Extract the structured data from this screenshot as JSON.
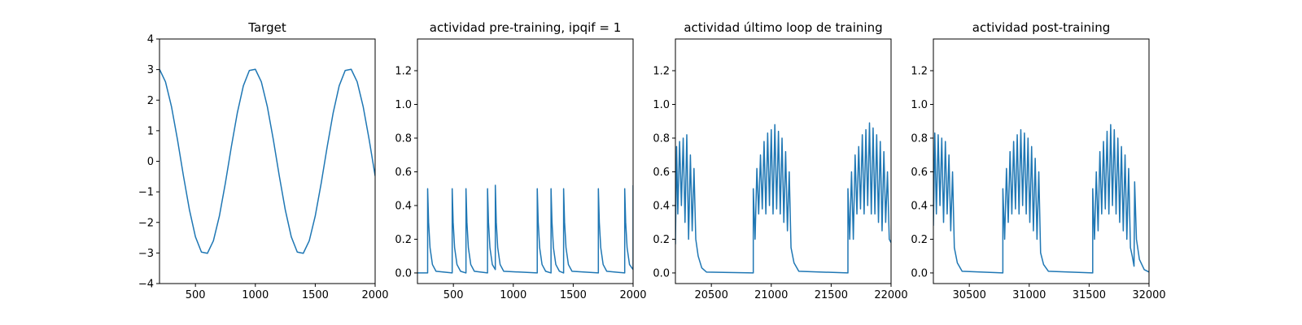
{
  "chart_data": [
    {
      "type": "line",
      "title": "Target",
      "color": "#1f77b4",
      "x": [
        200,
        250,
        300,
        350,
        400,
        450,
        500,
        550,
        600,
        650,
        700,
        750,
        800,
        850,
        900,
        950,
        1000,
        1050,
        1100,
        1150,
        1200,
        1250,
        1300,
        1350,
        1400,
        1450,
        1500,
        1550,
        1600,
        1650,
        1700,
        1750,
        1800,
        1850,
        1900,
        1950,
        2000
      ],
      "values": [
        3.01,
        2.6,
        1.79,
        0.71,
        -0.48,
        -1.59,
        -2.47,
        -2.97,
        -3.01,
        -2.6,
        -1.79,
        -0.71,
        0.48,
        1.59,
        2.47,
        2.97,
        3.01,
        2.6,
        1.79,
        0.71,
        -0.48,
        -1.59,
        -2.47,
        -2.97,
        -3.01,
        -2.6,
        -1.79,
        -0.71,
        0.48,
        1.59,
        2.47,
        2.97,
        3.01,
        2.6,
        1.79,
        0.71,
        -0.48
      ],
      "xlim": [
        200,
        2000
      ],
      "xticks": [
        500,
        1000,
        1500,
        2000
      ],
      "ylim": [
        -4,
        4
      ],
      "yticks": [
        {
          "value": -4,
          "label": "−4"
        },
        {
          "value": -3,
          "label": "−3"
        },
        {
          "value": -2,
          "label": "−2"
        },
        {
          "value": -1,
          "label": "−1"
        },
        0,
        1,
        2,
        3,
        4
      ]
    },
    {
      "type": "line",
      "title": "actividad pre-training, ipqif = 1",
      "color": "#1f77b4",
      "x": [
        200,
        285,
        285,
        293,
        305,
        325,
        355,
        490,
        490,
        498,
        510,
        530,
        560,
        605,
        605,
        613,
        625,
        645,
        675,
        785,
        785,
        793,
        805,
        825,
        850,
        850,
        858,
        870,
        890,
        920,
        1200,
        1200,
        1208,
        1220,
        1240,
        1270,
        1315,
        1315,
        1323,
        1335,
        1355,
        1385,
        1420,
        1420,
        1428,
        1440,
        1460,
        1490,
        1710,
        1710,
        1718,
        1730,
        1750,
        1780,
        1930,
        1930,
        1938,
        1950,
        1970,
        2000,
        2000
      ],
      "values": [
        0,
        0,
        0.5,
        0.3,
        0.15,
        0.05,
        0.01,
        0,
        0.5,
        0.3,
        0.15,
        0.05,
        0.01,
        0,
        0.5,
        0.3,
        0.15,
        0.05,
        0.01,
        0,
        0.5,
        0.3,
        0.15,
        0.05,
        0.02,
        0.52,
        0.3,
        0.15,
        0.05,
        0.01,
        0,
        0.5,
        0.3,
        0.15,
        0.05,
        0.01,
        0,
        0.5,
        0.3,
        0.15,
        0.05,
        0.01,
        0,
        0.5,
        0.3,
        0.15,
        0.05,
        0.01,
        0,
        0.5,
        0.3,
        0.15,
        0.05,
        0.01,
        0,
        0.5,
        0.3,
        0.15,
        0.05,
        0.02,
        0.52
      ],
      "xlim": [
        200,
        2000
      ],
      "xticks": [
        500,
        1000,
        1500,
        2000
      ],
      "ylim": [
        -0.063,
        1.388
      ],
      "yticks": [
        {
          "value": 0,
          "label": "0.0"
        },
        0.2,
        0.4,
        0.6,
        0.8,
        {
          "value": 1,
          "label": "1.0"
        },
        1.2
      ]
    },
    {
      "type": "line",
      "title": "actividad último loop de training",
      "color": "#1f77b4",
      "x": [
        20200,
        20210,
        20220,
        20235,
        20250,
        20265,
        20280,
        20295,
        20310,
        20325,
        20340,
        20355,
        20370,
        20390,
        20420,
        20460,
        20850,
        20850,
        20865,
        20880,
        20895,
        20910,
        20925,
        20940,
        20955,
        20970,
        20985,
        21000,
        21015,
        21030,
        21045,
        21060,
        21075,
        21090,
        21105,
        21120,
        21135,
        21150,
        21165,
        21190,
        21230,
        21640,
        21640,
        21655,
        21670,
        21685,
        21700,
        21715,
        21730,
        21745,
        21760,
        21775,
        21790,
        21805,
        21820,
        21835,
        21850,
        21865,
        21880,
        21895,
        21910,
        21925,
        21940,
        21955,
        21970,
        21985,
        22000
      ],
      "values": [
        0.17,
        0.75,
        0.35,
        0.78,
        0.4,
        0.8,
        0.3,
        0.82,
        0.2,
        0.7,
        0.25,
        0.62,
        0.2,
        0.1,
        0.03,
        0.005,
        0,
        0.5,
        0.2,
        0.62,
        0.35,
        0.7,
        0.38,
        0.78,
        0.35,
        0.83,
        0.4,
        0.85,
        0.35,
        0.88,
        0.38,
        0.84,
        0.35,
        0.8,
        0.3,
        0.72,
        0.25,
        0.6,
        0.15,
        0.06,
        0.01,
        0,
        0.5,
        0.2,
        0.6,
        0.2,
        0.7,
        0.35,
        0.75,
        0.38,
        0.82,
        0.35,
        0.85,
        0.4,
        0.89,
        0.35,
        0.86,
        0.35,
        0.82,
        0.3,
        0.78,
        0.25,
        0.72,
        0.3,
        0.6,
        0.2,
        0.18
      ],
      "xlim": [
        20200,
        22000
      ],
      "xticks": [
        20500,
        21000,
        21500,
        22000
      ],
      "ylim": [
        -0.063,
        1.388
      ],
      "yticks": [
        {
          "value": 0,
          "label": "0.0"
        },
        0.2,
        0.4,
        0.6,
        0.8,
        {
          "value": 1,
          "label": "1.0"
        },
        1.2
      ]
    },
    {
      "type": "line",
      "title": "actividad post-training",
      "color": "#1f77b4",
      "x": [
        30200,
        30212,
        30225,
        30240,
        30255,
        30270,
        30285,
        30300,
        30315,
        30330,
        30345,
        30360,
        30375,
        30400,
        30440,
        30780,
        30780,
        30795,
        30810,
        30825,
        30840,
        30855,
        30870,
        30885,
        30900,
        30915,
        30930,
        30945,
        30960,
        30975,
        30990,
        31005,
        31020,
        31035,
        31050,
        31065,
        31080,
        31095,
        31120,
        31160,
        31530,
        31530,
        31545,
        31560,
        31575,
        31590,
        31605,
        31620,
        31635,
        31650,
        31665,
        31680,
        31695,
        31710,
        31725,
        31740,
        31755,
        31770,
        31785,
        31800,
        31815,
        31830,
        31845,
        31860,
        31875,
        31880,
        31895,
        31920,
        31960,
        32000
      ],
      "values": [
        0.28,
        0.83,
        0.35,
        0.82,
        0.4,
        0.8,
        0.3,
        0.78,
        0.35,
        0.7,
        0.25,
        0.6,
        0.15,
        0.06,
        0.01,
        0,
        0.5,
        0.2,
        0.62,
        0.3,
        0.72,
        0.35,
        0.78,
        0.38,
        0.82,
        0.35,
        0.85,
        0.4,
        0.83,
        0.35,
        0.8,
        0.3,
        0.75,
        0.25,
        0.68,
        0.2,
        0.6,
        0.12,
        0.05,
        0.01,
        0,
        0.5,
        0.2,
        0.6,
        0.25,
        0.72,
        0.35,
        0.78,
        0.38,
        0.84,
        0.35,
        0.88,
        0.4,
        0.85,
        0.35,
        0.8,
        0.3,
        0.75,
        0.25,
        0.7,
        0.2,
        0.62,
        0.15,
        0.1,
        0.04,
        0.54,
        0.2,
        0.08,
        0.02,
        0.005
      ],
      "xlim": [
        30200,
        32000
      ],
      "xticks": [
        30500,
        31000,
        31500,
        32000
      ],
      "ylim": [
        -0.063,
        1.388
      ],
      "yticks": [
        {
          "value": 0,
          "label": "0.0"
        },
        0.2,
        0.4,
        0.6,
        0.8,
        {
          "value": 1,
          "label": "1.0"
        },
        1.2
      ]
    }
  ]
}
